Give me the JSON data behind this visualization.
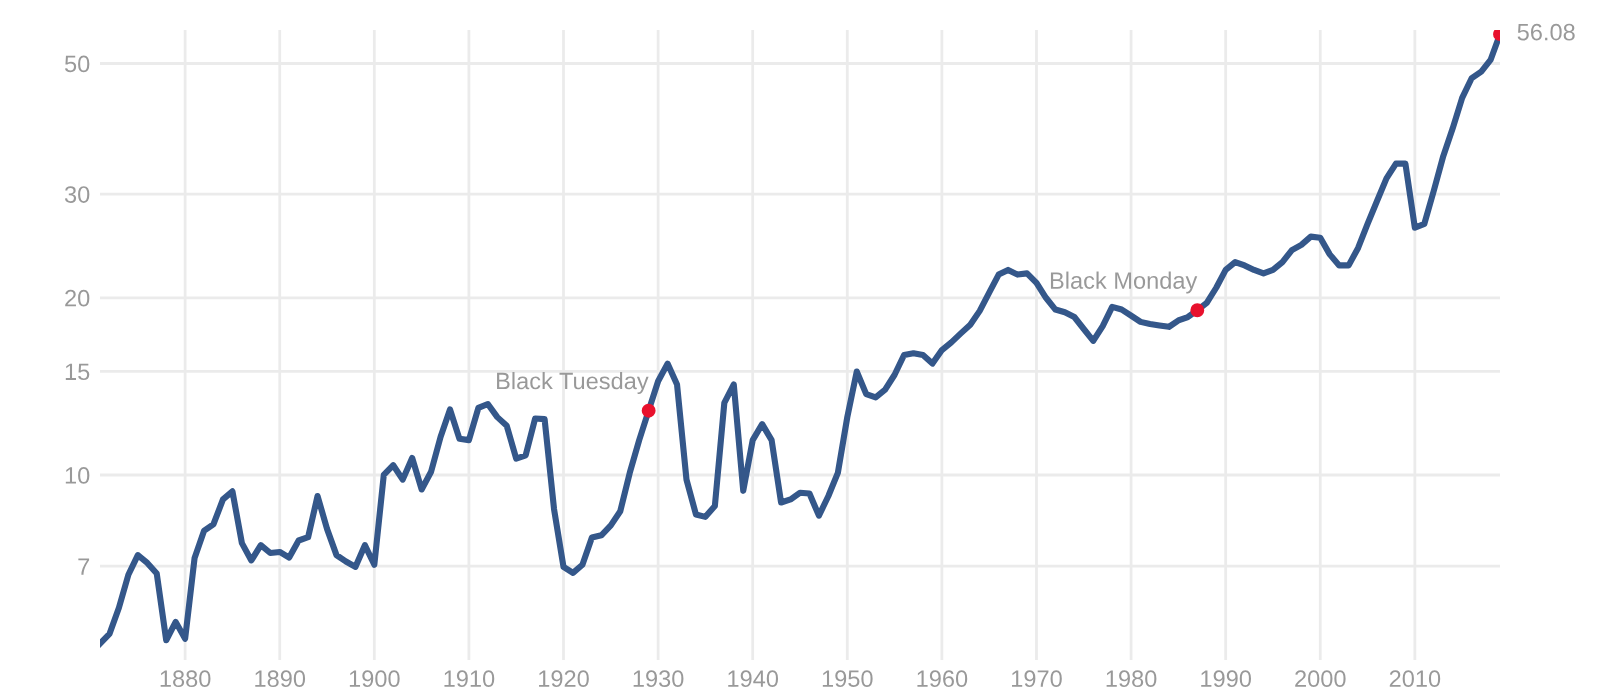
{
  "chart_data": {
    "type": "line",
    "log": "y",
    "grid": true,
    "legend": false,
    "xlim": [
      1871,
      2019
    ],
    "ylim": [
      4.85,
      57
    ],
    "xticks": [
      1880,
      1890,
      1900,
      1910,
      1920,
      1930,
      1940,
      1950,
      1960,
      1970,
      1980,
      1990,
      2000,
      2010
    ],
    "yticks": [
      7,
      10,
      15,
      20,
      30,
      50
    ],
    "series": [
      {
        "color": "#34578a",
        "x": [
          1871,
          1872,
          1873,
          1874,
          1875,
          1876,
          1877,
          1878,
          1879,
          1880,
          1881,
          1882,
          1883,
          1884,
          1885,
          1886,
          1887,
          1888,
          1889,
          1890,
          1891,
          1892,
          1893,
          1894,
          1895,
          1896,
          1897,
          1898,
          1899,
          1900,
          1901,
          1902,
          1903,
          1904,
          1905,
          1906,
          1907,
          1908,
          1909,
          1910,
          1911,
          1912,
          1913,
          1914,
          1915,
          1916,
          1917,
          1918,
          1919,
          1920,
          1921,
          1922,
          1923,
          1924,
          1925,
          1926,
          1927,
          1928,
          1929,
          1930,
          1931,
          1932,
          1933,
          1934,
          1935,
          1936,
          1937,
          1938,
          1939,
          1940,
          1941,
          1942,
          1943,
          1944,
          1945,
          1946,
          1947,
          1948,
          1949,
          1950,
          1951,
          1952,
          1953,
          1954,
          1955,
          1956,
          1957,
          1958,
          1959,
          1960,
          1961,
          1962,
          1963,
          1964,
          1965,
          1966,
          1967,
          1968,
          1969,
          1970,
          1971,
          1972,
          1973,
          1974,
          1975,
          1976,
          1977,
          1978,
          1979,
          1980,
          1981,
          1982,
          1983,
          1984,
          1985,
          1986,
          1987,
          1988,
          1989,
          1990,
          1991,
          1992,
          1993,
          1994,
          1995,
          1996,
          1997,
          1998,
          1999,
          2000,
          2001,
          2002,
          2003,
          2004,
          2005,
          2006,
          2007,
          2008,
          2009,
          2010,
          2011,
          2012,
          2013,
          2014,
          2015,
          2016,
          2017,
          2018,
          2019
        ],
        "values": [
          5.17,
          5.37,
          5.95,
          6.77,
          7.31,
          7.09,
          6.8,
          5.24,
          5.63,
          5.27,
          7.23,
          8.04,
          8.25,
          9.09,
          9.38,
          7.66,
          7.16,
          7.6,
          7.37,
          7.4,
          7.24,
          7.74,
          7.84,
          9.21,
          8.1,
          7.31,
          7.13,
          6.98,
          7.6,
          7.04,
          10.0,
          10.39,
          9.82,
          10.69,
          9.45,
          10.13,
          11.6,
          12.92,
          11.52,
          11.46,
          13.0,
          13.2,
          12.54,
          12.12,
          10.66,
          10.8,
          12.47,
          12.44,
          8.75,
          6.98,
          6.82,
          7.04,
          7.83,
          7.9,
          8.21,
          8.68,
          10.08,
          11.46,
          12.86,
          14.43,
          15.46,
          14.25,
          9.82,
          8.57,
          8.49,
          8.86,
          13.26,
          14.25,
          9.4,
          11.46,
          12.2,
          11.46,
          8.98,
          9.09,
          9.33,
          9.3,
          8.53,
          9.21,
          10.08,
          12.54,
          14.99,
          13.72,
          13.55,
          13.96,
          14.8,
          15.99,
          16.1,
          15.99,
          15.46,
          16.3,
          16.8,
          17.4,
          18.0,
          19.0,
          20.4,
          21.9,
          22.3,
          21.9,
          22.0,
          21.2,
          20.0,
          19.1,
          18.9,
          18.55,
          17.7,
          16.9,
          17.9,
          19.3,
          19.1,
          18.65,
          18.2,
          18.05,
          17.95,
          17.85,
          18.3,
          18.55,
          19.05,
          19.6,
          20.8,
          22.3,
          23.0,
          22.7,
          22.3,
          22.0,
          22.3,
          23.0,
          24.1,
          24.6,
          25.4,
          25.3,
          23.7,
          22.7,
          22.7,
          24.3,
          26.7,
          29.2,
          31.9,
          33.8,
          33.8,
          26.3,
          26.7,
          30.4,
          34.8,
          38.8,
          43.7,
          47.2,
          48.4,
          50.7,
          56.08
        ]
      },
      {
        "type": "scatter",
        "color": "#e8112d",
        "x": [
          1929,
          1987,
          2019
        ],
        "values": [
          12.86,
          19.05,
          56.08
        ],
        "value_labels": [
          null,
          null,
          "56.08"
        ]
      }
    ],
    "annotations": [
      {
        "text": "Black Tuesday",
        "x": 1929,
        "y": 12.86
      },
      {
        "text": "Black Monday",
        "x": 1987,
        "y": 19.05
      }
    ]
  }
}
